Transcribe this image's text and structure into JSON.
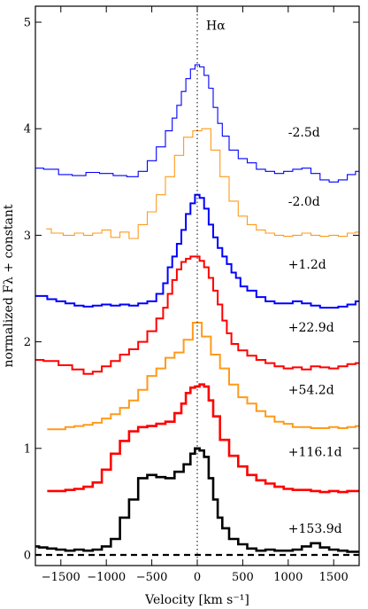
{
  "chart_data": {
    "type": "line",
    "title": "",
    "xlabel": "Velocity [km s⁻¹]",
    "ylabel": "normalized Fλ + constant",
    "xlim": [
      -1780,
      1780
    ],
    "ylim": [
      -0.1,
      5.15
    ],
    "x_ticks": [
      -1500,
      -1000,
      -500,
      0,
      500,
      1000,
      1500
    ],
    "x_tick_labels": [
      "−1500",
      "−1000",
      "−500",
      "0",
      "500",
      "1000",
      "1500"
    ],
    "y_ticks": [
      0,
      1,
      2,
      3,
      4,
      5
    ],
    "y_tick_labels": [
      "0",
      "1",
      "2",
      "3",
      "4",
      "5"
    ],
    "grid": false,
    "legend": "none",
    "annotation": "Hα",
    "reference_line_x": 0,
    "baseline_y": 0,
    "series": [
      {
        "name": "-2.5d",
        "color": "#0000ff",
        "width": 1.1,
        "label_y": 3.97,
        "points": [
          [
            -1780,
            3.63
          ],
          [
            -1600,
            3.62
          ],
          [
            -1450,
            3.57
          ],
          [
            -1300,
            3.56
          ],
          [
            -1150,
            3.59
          ],
          [
            -1000,
            3.58
          ],
          [
            -850,
            3.56
          ],
          [
            -700,
            3.55
          ],
          [
            -600,
            3.6
          ],
          [
            -500,
            3.7
          ],
          [
            -400,
            3.83
          ],
          [
            -300,
            3.98
          ],
          [
            -250,
            4.1
          ],
          [
            -200,
            4.22
          ],
          [
            -150,
            4.35
          ],
          [
            -100,
            4.47
          ],
          [
            -50,
            4.56
          ],
          [
            0,
            4.6
          ],
          [
            50,
            4.58
          ],
          [
            100,
            4.5
          ],
          [
            150,
            4.38
          ],
          [
            200,
            4.2
          ],
          [
            250,
            4.05
          ],
          [
            300,
            3.93
          ],
          [
            400,
            3.8
          ],
          [
            500,
            3.72
          ],
          [
            600,
            3.68
          ],
          [
            700,
            3.62
          ],
          [
            800,
            3.6
          ],
          [
            900,
            3.58
          ],
          [
            1000,
            3.6
          ],
          [
            1100,
            3.62
          ],
          [
            1200,
            3.63
          ],
          [
            1300,
            3.58
          ],
          [
            1400,
            3.52
          ],
          [
            1500,
            3.5
          ],
          [
            1600,
            3.52
          ],
          [
            1700,
            3.57
          ],
          [
            1780,
            3.6
          ]
        ]
      },
      {
        "name": "-2.0d",
        "color": "#ff9a1a",
        "width": 1.1,
        "label_y": 3.32,
        "points": [
          [
            -1660,
            3.06
          ],
          [
            -1550,
            3.02
          ],
          [
            -1400,
            3.0
          ],
          [
            -1300,
            3.02
          ],
          [
            -1200,
            3.0
          ],
          [
            -1100,
            3.02
          ],
          [
            -1000,
            3.05
          ],
          [
            -900,
            2.98
          ],
          [
            -800,
            3.03
          ],
          [
            -700,
            2.97
          ],
          [
            -600,
            3.1
          ],
          [
            -500,
            3.22
          ],
          [
            -400,
            3.38
          ],
          [
            -300,
            3.55
          ],
          [
            -200,
            3.75
          ],
          [
            -100,
            3.92
          ],
          [
            0,
            3.98
          ],
          [
            100,
            4.0
          ],
          [
            200,
            3.8
          ],
          [
            300,
            3.55
          ],
          [
            400,
            3.32
          ],
          [
            500,
            3.18
          ],
          [
            600,
            3.1
          ],
          [
            700,
            3.05
          ],
          [
            800,
            3.02
          ],
          [
            900,
            3.0
          ],
          [
            1000,
            2.99
          ],
          [
            1100,
            3.0
          ],
          [
            1200,
            3.02
          ],
          [
            1300,
            3.0
          ],
          [
            1400,
            2.99
          ],
          [
            1500,
            3.0
          ],
          [
            1600,
            2.99
          ],
          [
            1700,
            3.02
          ],
          [
            1780,
            3.03
          ]
        ]
      },
      {
        "name": "+1.2d",
        "color": "#0000ff",
        "width": 2.0,
        "label_y": 2.73,
        "points": [
          [
            -1780,
            2.43
          ],
          [
            -1700,
            2.43
          ],
          [
            -1600,
            2.4
          ],
          [
            -1500,
            2.38
          ],
          [
            -1400,
            2.36
          ],
          [
            -1300,
            2.34
          ],
          [
            -1200,
            2.33
          ],
          [
            -1100,
            2.34
          ],
          [
            -1000,
            2.35
          ],
          [
            -900,
            2.34
          ],
          [
            -800,
            2.35
          ],
          [
            -700,
            2.34
          ],
          [
            -600,
            2.36
          ],
          [
            -500,
            2.38
          ],
          [
            -400,
            2.45
          ],
          [
            -350,
            2.55
          ],
          [
            -300,
            2.7
          ],
          [
            -250,
            2.8
          ],
          [
            -200,
            2.92
          ],
          [
            -150,
            3.05
          ],
          [
            -100,
            3.2
          ],
          [
            -50,
            3.3
          ],
          [
            0,
            3.38
          ],
          [
            50,
            3.35
          ],
          [
            100,
            3.25
          ],
          [
            150,
            3.1
          ],
          [
            200,
            2.98
          ],
          [
            250,
            2.88
          ],
          [
            300,
            2.8
          ],
          [
            350,
            2.73
          ],
          [
            400,
            2.65
          ],
          [
            450,
            2.6
          ],
          [
            500,
            2.52
          ],
          [
            600,
            2.48
          ],
          [
            700,
            2.42
          ],
          [
            800,
            2.38
          ],
          [
            900,
            2.36
          ],
          [
            1000,
            2.36
          ],
          [
            1100,
            2.38
          ],
          [
            1200,
            2.36
          ],
          [
            1300,
            2.34
          ],
          [
            1400,
            2.32
          ],
          [
            1500,
            2.32
          ],
          [
            1600,
            2.33
          ],
          [
            1700,
            2.35
          ],
          [
            1780,
            2.38
          ]
        ]
      },
      {
        "name": "+22.9d",
        "color": "#ff0000",
        "width": 2.0,
        "label_y": 2.14,
        "points": [
          [
            -1780,
            1.83
          ],
          [
            -1600,
            1.82
          ],
          [
            -1450,
            1.78
          ],
          [
            -1300,
            1.74
          ],
          [
            -1200,
            1.7
          ],
          [
            -1100,
            1.72
          ],
          [
            -1000,
            1.77
          ],
          [
            -900,
            1.82
          ],
          [
            -800,
            1.88
          ],
          [
            -700,
            1.93
          ],
          [
            -600,
            2.0
          ],
          [
            -500,
            2.1
          ],
          [
            -400,
            2.22
          ],
          [
            -350,
            2.32
          ],
          [
            -300,
            2.45
          ],
          [
            -250,
            2.58
          ],
          [
            -200,
            2.68
          ],
          [
            -150,
            2.75
          ],
          [
            -100,
            2.78
          ],
          [
            -50,
            2.8
          ],
          [
            0,
            2.8
          ],
          [
            50,
            2.76
          ],
          [
            100,
            2.7
          ],
          [
            150,
            2.6
          ],
          [
            200,
            2.48
          ],
          [
            250,
            2.35
          ],
          [
            300,
            2.2
          ],
          [
            350,
            2.08
          ],
          [
            400,
            1.98
          ],
          [
            500,
            1.92
          ],
          [
            600,
            1.87
          ],
          [
            700,
            1.83
          ],
          [
            800,
            1.8
          ],
          [
            900,
            1.77
          ],
          [
            1000,
            1.75
          ],
          [
            1100,
            1.76
          ],
          [
            1200,
            1.74
          ],
          [
            1300,
            1.77
          ],
          [
            1400,
            1.76
          ],
          [
            1500,
            1.75
          ],
          [
            1600,
            1.77
          ],
          [
            1700,
            1.79
          ],
          [
            1780,
            1.8
          ]
        ]
      },
      {
        "name": "+54.2d",
        "color": "#ff9a1a",
        "width": 2.0,
        "label_y": 1.55,
        "points": [
          [
            -1650,
            1.18
          ],
          [
            -1500,
            1.18
          ],
          [
            -1400,
            1.2
          ],
          [
            -1300,
            1.21
          ],
          [
            -1200,
            1.22
          ],
          [
            -1100,
            1.24
          ],
          [
            -1000,
            1.28
          ],
          [
            -900,
            1.32
          ],
          [
            -800,
            1.38
          ],
          [
            -700,
            1.45
          ],
          [
            -600,
            1.55
          ],
          [
            -500,
            1.68
          ],
          [
            -400,
            1.75
          ],
          [
            -300,
            1.85
          ],
          [
            -200,
            1.9
          ],
          [
            -100,
            2.02
          ],
          [
            0,
            2.18
          ],
          [
            100,
            2.05
          ],
          [
            200,
            1.88
          ],
          [
            300,
            1.75
          ],
          [
            400,
            1.6
          ],
          [
            500,
            1.48
          ],
          [
            600,
            1.42
          ],
          [
            700,
            1.35
          ],
          [
            800,
            1.3
          ],
          [
            900,
            1.25
          ],
          [
            1000,
            1.23
          ],
          [
            1100,
            1.2
          ],
          [
            1200,
            1.2
          ],
          [
            1300,
            1.19
          ],
          [
            1400,
            1.19
          ],
          [
            1500,
            1.2
          ],
          [
            1600,
            1.19
          ],
          [
            1700,
            1.2
          ],
          [
            1780,
            1.21
          ]
        ]
      },
      {
        "name": "+116.1d",
        "color": "#ff0000",
        "width": 2.6,
        "label_y": 0.97,
        "points": [
          [
            -1650,
            0.6
          ],
          [
            -1500,
            0.6
          ],
          [
            -1400,
            0.61
          ],
          [
            -1300,
            0.62
          ],
          [
            -1200,
            0.64
          ],
          [
            -1100,
            0.68
          ],
          [
            -1000,
            0.8
          ],
          [
            -900,
            0.95
          ],
          [
            -800,
            1.07
          ],
          [
            -700,
            1.16
          ],
          [
            -600,
            1.2
          ],
          [
            -500,
            1.21
          ],
          [
            -400,
            1.23
          ],
          [
            -300,
            1.25
          ],
          [
            -200,
            1.33
          ],
          [
            -150,
            1.42
          ],
          [
            -100,
            1.52
          ],
          [
            -50,
            1.57
          ],
          [
            0,
            1.58
          ],
          [
            50,
            1.6
          ],
          [
            100,
            1.58
          ],
          [
            150,
            1.45
          ],
          [
            200,
            1.3
          ],
          [
            300,
            1.08
          ],
          [
            400,
            0.93
          ],
          [
            500,
            0.83
          ],
          [
            600,
            0.75
          ],
          [
            700,
            0.7
          ],
          [
            800,
            0.67
          ],
          [
            900,
            0.64
          ],
          [
            1000,
            0.62
          ],
          [
            1100,
            0.61
          ],
          [
            1200,
            0.61
          ],
          [
            1300,
            0.6
          ],
          [
            1400,
            0.59
          ],
          [
            1500,
            0.6
          ],
          [
            1600,
            0.59
          ],
          [
            1700,
            0.6
          ],
          [
            1780,
            0.6
          ]
        ]
      },
      {
        "name": "+153.9d",
        "color": "#000000",
        "width": 2.6,
        "label_y": 0.25,
        "points": [
          [
            -1780,
            0.08
          ],
          [
            -1700,
            0.07
          ],
          [
            -1600,
            0.06
          ],
          [
            -1500,
            0.05
          ],
          [
            -1400,
            0.04
          ],
          [
            -1300,
            0.05
          ],
          [
            -1200,
            0.04
          ],
          [
            -1100,
            0.05
          ],
          [
            -1000,
            0.08
          ],
          [
            -900,
            0.15
          ],
          [
            -800,
            0.35
          ],
          [
            -700,
            0.52
          ],
          [
            -600,
            0.72
          ],
          [
            -500,
            0.75
          ],
          [
            -400,
            0.73
          ],
          [
            -300,
            0.72
          ],
          [
            -200,
            0.78
          ],
          [
            -100,
            0.85
          ],
          [
            -50,
            0.95
          ],
          [
            0,
            1.0
          ],
          [
            50,
            0.98
          ],
          [
            100,
            0.92
          ],
          [
            150,
            0.72
          ],
          [
            200,
            0.52
          ],
          [
            250,
            0.35
          ],
          [
            300,
            0.25
          ],
          [
            400,
            0.15
          ],
          [
            500,
            0.1
          ],
          [
            600,
            0.06
          ],
          [
            700,
            0.04
          ],
          [
            800,
            0.05
          ],
          [
            900,
            0.04
          ],
          [
            1000,
            0.04
          ],
          [
            1100,
            0.05
          ],
          [
            1200,
            0.08
          ],
          [
            1300,
            0.11
          ],
          [
            1400,
            0.07
          ],
          [
            1500,
            0.05
          ],
          [
            1600,
            0.04
          ],
          [
            1700,
            0.03
          ],
          [
            1780,
            0.03
          ]
        ]
      }
    ]
  }
}
